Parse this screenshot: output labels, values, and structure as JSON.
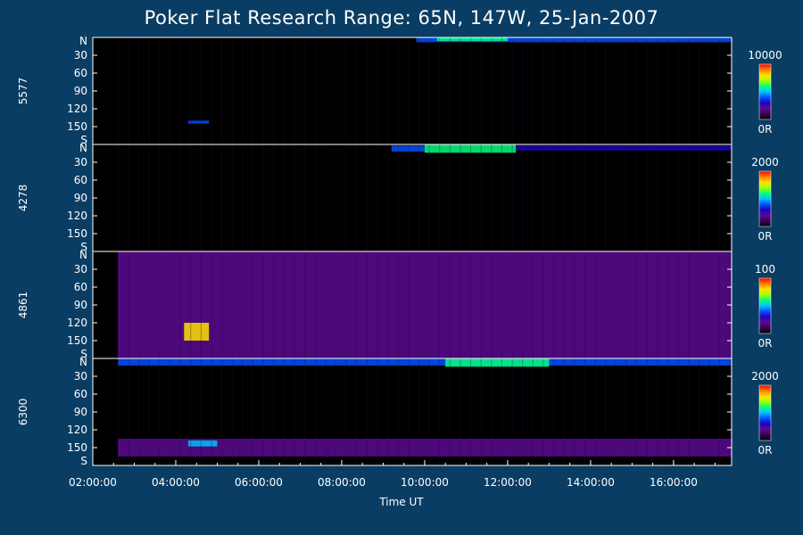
{
  "title": "Poker Flat Research Range: 65N, 147W, 25-Jan-2007",
  "chart_data": {
    "type": "heatmap",
    "title": "Poker Flat Research Range: 65N, 147W, 25-Jan-2007",
    "xlabel": "Time UT",
    "x_ticks": [
      "02:00:00",
      "04:00:00",
      "06:00:00",
      "08:00:00",
      "10:00:00",
      "12:00:00",
      "14:00:00",
      "16:00:00"
    ],
    "x_range_hours": [
      2.0,
      17.4
    ],
    "data_start_hour": 2.6,
    "y_ticks": [
      "N",
      "30",
      "60",
      "90",
      "120",
      "150",
      "S"
    ],
    "y_range": [
      0,
      180
    ],
    "panels": [
      {
        "wavelength": "5577",
        "cbar_max": "10000",
        "cbar_min": "0R",
        "features": [
          {
            "t0": 9.8,
            "t1": 17.4,
            "zen0": 0,
            "zen1": 8,
            "level": 0.35
          },
          {
            "t0": 10.3,
            "t1": 12.0,
            "zen0": 0,
            "zen1": 6,
            "level": 0.6
          },
          {
            "t0": 4.3,
            "t1": 4.8,
            "zen0": 140,
            "zen1": 145,
            "level": 0.35
          }
        ]
      },
      {
        "wavelength": "4278",
        "cbar_max": "2000",
        "cbar_min": "0R",
        "features": [
          {
            "t0": 9.2,
            "t1": 10.0,
            "zen0": 2,
            "zen1": 12,
            "level": 0.35
          },
          {
            "t0": 10.0,
            "t1": 12.2,
            "zen0": 0,
            "zen1": 14,
            "level": 0.6
          },
          {
            "t0": 12.2,
            "t1": 17.4,
            "zen0": 2,
            "zen1": 10,
            "level": 0.3
          }
        ]
      },
      {
        "wavelength": "4861",
        "cbar_max": "100",
        "cbar_min": "0R",
        "features": [
          {
            "t0": 2.6,
            "t1": 17.4,
            "zen0": 0,
            "zen1": 180,
            "level": 0.2
          },
          {
            "t0": 4.2,
            "t1": 4.8,
            "zen0": 120,
            "zen1": 150,
            "level": 0.8
          }
        ]
      },
      {
        "wavelength": "6300",
        "cbar_max": "2000",
        "cbar_min": "0R",
        "features": [
          {
            "t0": 2.6,
            "t1": 17.4,
            "zen0": 0,
            "zen1": 12,
            "level": 0.4
          },
          {
            "t0": 10.5,
            "t1": 13.0,
            "zen0": 0,
            "zen1": 14,
            "level": 0.55
          },
          {
            "t0": 2.6,
            "t1": 17.4,
            "zen0": 135,
            "zen1": 165,
            "level": 0.15
          },
          {
            "t0": 4.3,
            "t1": 5.0,
            "zen0": 138,
            "zen1": 148,
            "level": 0.5
          }
        ]
      }
    ],
    "colorscale": [
      "#000000",
      "#3a0050",
      "#5a0a90",
      "#2000c0",
      "#0050ff",
      "#00c0ff",
      "#00ff80",
      "#a0ff00",
      "#ffe000",
      "#ff8000",
      "#ff0000"
    ]
  }
}
